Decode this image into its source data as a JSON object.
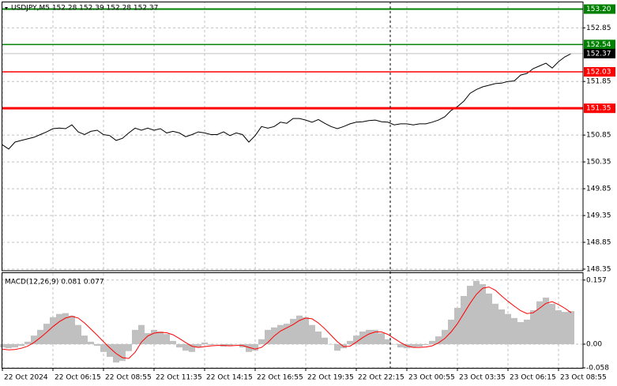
{
  "chart_data": [
    {
      "type": "line",
      "title": "USDJPY,M5 152.28 152.39 152.28 152.37",
      "series": [
        {
          "color": "#000000",
          "values": [
            150.67,
            150.59,
            150.72,
            150.75,
            150.78,
            150.81,
            150.86,
            150.91,
            150.97,
            150.98,
            150.97,
            151.04,
            150.91,
            150.86,
            150.92,
            150.94,
            150.86,
            150.84,
            150.75,
            150.79,
            150.89,
            150.98,
            150.94,
            150.98,
            150.94,
            150.97,
            150.89,
            150.92,
            150.89,
            150.82,
            150.86,
            150.91,
            150.89,
            150.86,
            150.86,
            150.91,
            150.84,
            150.89,
            150.86,
            150.72,
            150.84,
            151.01,
            150.98,
            151.01,
            151.09,
            151.07,
            151.16,
            151.16,
            151.13,
            151.09,
            151.14,
            151.07,
            151.01,
            150.97,
            151.01,
            151.06,
            151.09,
            151.1,
            151.12,
            151.13,
            151.1,
            151.09,
            151.04,
            151.06,
            151.06,
            151.04,
            151.06,
            151.06,
            151.09,
            151.13,
            151.19,
            151.31,
            151.38,
            151.48,
            151.63,
            151.7,
            151.75,
            151.78,
            151.81,
            151.82,
            151.85,
            151.86,
            151.97,
            152.0,
            152.09,
            152.14,
            152.19,
            152.1,
            152.22,
            152.31,
            152.37
          ]
        }
      ],
      "ylim": [
        148.32,
        153.34
      ],
      "yticks": [
        148.35,
        148.85,
        149.35,
        149.85,
        150.35,
        150.85,
        151.85,
        152.85
      ],
      "grid": true,
      "levels": [
        {
          "value": 153.2,
          "label": "153.20",
          "color": "#008000",
          "box": "#008000",
          "width": 2
        },
        {
          "value": 152.54,
          "color": "#008000",
          "box": "#008000",
          "width": 1.5
        },
        {
          "value": 152.37,
          "color": "#c0c0c0",
          "box": "#000000",
          "width": 1
        },
        {
          "value": 152.03,
          "color": "#ff0000",
          "box": "#ff0000",
          "width": 1.5
        },
        {
          "value": 151.35,
          "color": "#ff0000",
          "box": "#ff0000",
          "width": 3
        }
      ]
    },
    {
      "type": "bar",
      "title": "MACD(12,26,9) 0.081 0.077",
      "series": [
        {
          "type": "bar",
          "color": "#c0c0c0",
          "values": [
            -0.008,
            -0.01,
            -0.008,
            -0.004,
            0.006,
            0.021,
            0.035,
            0.05,
            0.066,
            0.074,
            0.076,
            0.07,
            0.047,
            0.021,
            0.006,
            -0.004,
            -0.019,
            -0.031,
            -0.045,
            -0.041,
            -0.017,
            0.035,
            0.047,
            0.027,
            0.035,
            0.031,
            0.025,
            0.008,
            -0.008,
            -0.016,
            -0.019,
            -0.008,
            0.004,
            -0.002,
            0,
            -0.006,
            -0.004,
            0,
            -0.008,
            -0.019,
            -0.016,
            0.012,
            0.035,
            0.041,
            0.047,
            0.05,
            0.062,
            0.07,
            0.066,
            0.047,
            0.031,
            0.016,
            0,
            -0.016,
            -0.01,
            0.008,
            0.021,
            0.031,
            0.035,
            0.035,
            0.027,
            0.012,
            0,
            -0.008,
            -0.01,
            -0.008,
            -0.006,
            -0.002,
            0.008,
            0.019,
            0.035,
            0.06,
            0.089,
            0.118,
            0.143,
            0.155,
            0.147,
            0.124,
            0.099,
            0.085,
            0.074,
            0.064,
            0.054,
            0.06,
            0.083,
            0.105,
            0.114,
            0.099,
            0.083,
            0.079,
            0.081
          ]
        },
        {
          "type": "line",
          "color": "#ff0000",
          "values": [
            -0.012,
            -0.014,
            -0.013,
            -0.01,
            -0.005,
            0.004,
            0.016,
            0.029,
            0.043,
            0.055,
            0.064,
            0.068,
            0.064,
            0.052,
            0.037,
            0.022,
            0.006,
            -0.009,
            -0.023,
            -0.033,
            -0.035,
            -0.02,
            0.005,
            0.02,
            0.027,
            0.029,
            0.028,
            0.023,
            0.014,
            0.004,
            -0.005,
            -0.008,
            -0.006,
            -0.004,
            -0.003,
            -0.003,
            -0.004,
            -0.003,
            -0.003,
            -0.008,
            -0.012,
            -0.008,
            0.004,
            0.02,
            0.032,
            0.04,
            0.048,
            0.058,
            0.064,
            0.062,
            0.052,
            0.038,
            0.022,
            0.006,
            -0.006,
            -0.005,
            0.005,
            0.016,
            0.025,
            0.03,
            0.03,
            0.024,
            0.014,
            0.004,
            -0.004,
            -0.008,
            -0.008,
            -0.007,
            -0.004,
            0.003,
            0.014,
            0.03,
            0.05,
            0.075,
            0.1,
            0.122,
            0.137,
            0.14,
            0.132,
            0.118,
            0.105,
            0.093,
            0.082,
            0.075,
            0.077,
            0.088,
            0.1,
            0.104,
            0.097,
            0.088,
            0.077
          ]
        }
      ],
      "ylim": [
        -0.058,
        0.174
      ],
      "yticks": [
        0.157,
        {
          "value": 0,
          "label": "0.00"
        },
        -0.058
      ],
      "grid": true,
      "xlim": [
        0,
        91.875
      ],
      "xticks": [
        {
          "value": 0,
          "label": "22 Oct 2024"
        },
        {
          "value": 8,
          "label": "22 Oct 06:15"
        },
        {
          "value": 16,
          "label": "22 Oct 08:55"
        },
        {
          "value": 24,
          "label": "22 Oct 11:35"
        },
        {
          "value": 32,
          "label": "22 Oct 14:15"
        },
        {
          "value": 40,
          "label": "22 Oct 16:55"
        },
        {
          "value": 48,
          "label": "22 Oct 19:35"
        },
        {
          "value": 56,
          "label": "22 Oct 22:15"
        },
        {
          "value": 64,
          "label": "23 Oct 00:55"
        },
        {
          "value": 72,
          "label": "23 Oct 03:35"
        },
        {
          "value": 80,
          "label": "23 Oct 06:15"
        },
        {
          "value": 88,
          "label": "23 Oct 08:55"
        }
      ]
    }
  ]
}
